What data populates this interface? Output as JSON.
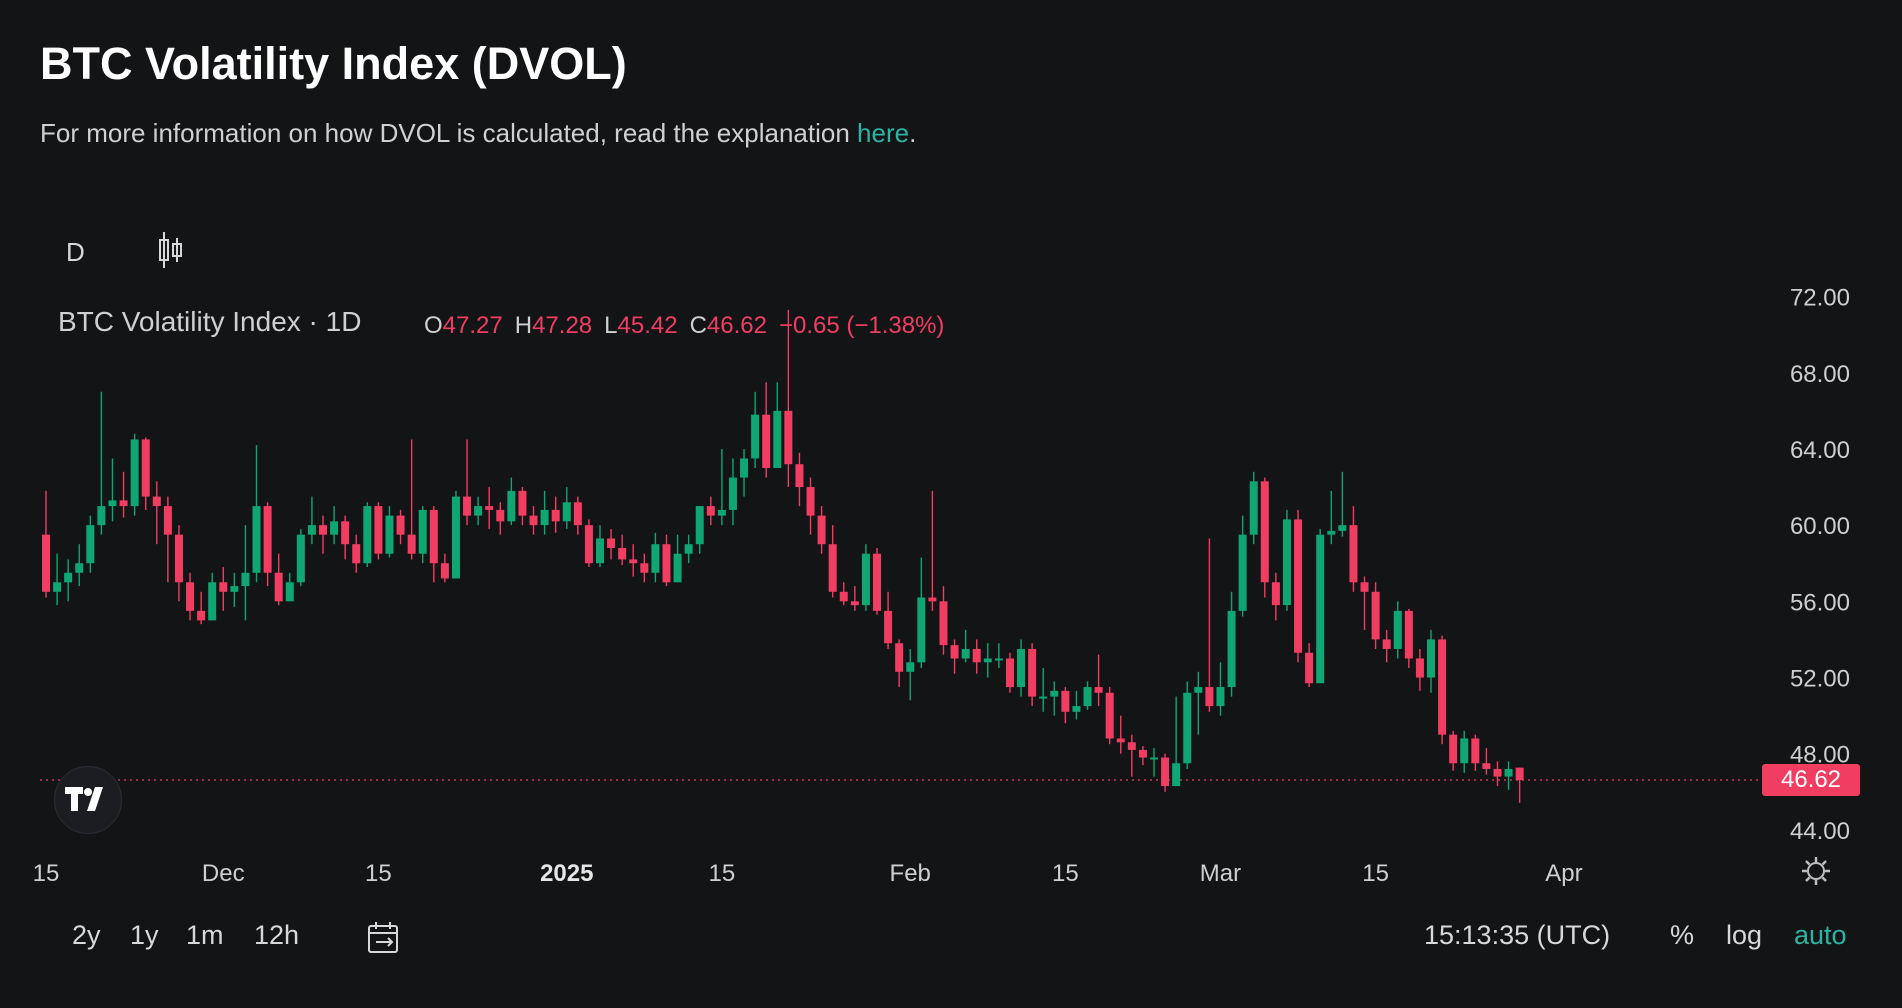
{
  "header": {
    "title": "BTC Volatility Index (DVOL)",
    "subtitle_prefix": "For more information on how DVOL is calculated, read the explanation ",
    "subtitle_link": "here",
    "subtitle_suffix": "."
  },
  "toolbar": {
    "interval": "D",
    "chart_type_icon": "candlestick-icon"
  },
  "legend": {
    "symbol": "BTC Volatility Index · 1D",
    "o_label": "O",
    "o_value": "47.27",
    "h_label": "H",
    "h_value": "47.28",
    "l_label": "L",
    "l_value": "45.42",
    "c_label": "C",
    "c_value": "46.62",
    "change": "−0.65 (−1.38%)"
  },
  "last_price": "46.62",
  "bottom": {
    "ranges": [
      "2y",
      "1y",
      "1m",
      "12h"
    ],
    "time": "15:13:35 (UTC)",
    "percent": "%",
    "log": "log",
    "auto": "auto"
  },
  "colors": {
    "up": "#0fa673",
    "down": "#f23d63",
    "accent": "#2bb3a3",
    "background": "#131416"
  },
  "chart_data": {
    "type": "candlestick",
    "title": "BTC Volatility Index · 1D",
    "ylim": [
      42.0,
      73.5
    ],
    "y_ticks": [
      "72.00",
      "68.00",
      "64.00",
      "60.00",
      "56.00",
      "52.00",
      "48.00",
      "44.00"
    ],
    "x_ticks": [
      "15",
      "Dec",
      "15",
      "2025",
      "15",
      "Feb",
      "15",
      "Mar",
      "15",
      "Apr"
    ],
    "x_tick_days": [
      0,
      16,
      30,
      47,
      61,
      78,
      92,
      106,
      120,
      137
    ],
    "first_date": "2024-11-15",
    "candles": [
      [
        59.5,
        56.5,
        61.8,
        56.2
      ],
      [
        56.5,
        57.0,
        58.5,
        55.8
      ],
      [
        57.0,
        57.5,
        58.2,
        56.0
      ],
      [
        57.5,
        58.0,
        59.0,
        56.8
      ],
      [
        58.0,
        60.0,
        60.5,
        57.5
      ],
      [
        60.0,
        61.0,
        67.0,
        59.5
      ],
      [
        61.0,
        61.3,
        63.5,
        60.2
      ],
      [
        61.3,
        61.0,
        62.8,
        60.4
      ],
      [
        61.0,
        64.5,
        64.8,
        60.5
      ],
      [
        64.5,
        61.5,
        64.6,
        60.8
      ],
      [
        61.5,
        61.0,
        62.3,
        59.0
      ],
      [
        61.0,
        59.5,
        61.5,
        57.0
      ],
      [
        59.5,
        57.0,
        60.0,
        56.0
      ],
      [
        57.0,
        55.5,
        57.5,
        55.0
      ],
      [
        55.5,
        55.0,
        56.5,
        54.8
      ],
      [
        55.0,
        57.0,
        57.5,
        55.0
      ],
      [
        57.0,
        56.5,
        57.8,
        55.5
      ],
      [
        56.5,
        56.8,
        57.5,
        55.7
      ],
      [
        56.8,
        57.5,
        60.0,
        55.0
      ],
      [
        57.5,
        61.0,
        64.2,
        57.0
      ],
      [
        61.0,
        57.5,
        61.2,
        56.8
      ],
      [
        57.5,
        56.0,
        58.5,
        55.8
      ],
      [
        56.0,
        57.0,
        57.5,
        56.5
      ],
      [
        57.0,
        59.5,
        59.8,
        56.8
      ],
      [
        59.5,
        60.0,
        61.5,
        59.0
      ],
      [
        60.0,
        59.5,
        60.5,
        58.5
      ],
      [
        59.5,
        60.2,
        61.0,
        59.0
      ],
      [
        60.2,
        59.0,
        60.5,
        58.2
      ],
      [
        59.0,
        58.0,
        59.5,
        57.5
      ],
      [
        58.0,
        61.0,
        61.2,
        57.8
      ],
      [
        61.0,
        58.5,
        61.2,
        58.2
      ],
      [
        58.5,
        60.5,
        61.0,
        58.3
      ],
      [
        60.5,
        59.5,
        60.8,
        59.0
      ],
      [
        59.5,
        58.5,
        64.5,
        58.2
      ],
      [
        58.5,
        60.8,
        61.0,
        58.0
      ],
      [
        60.8,
        58.0,
        61.0,
        57.0
      ],
      [
        58.0,
        57.2,
        58.5,
        57.0
      ],
      [
        57.2,
        61.5,
        61.8,
        57.5
      ],
      [
        61.5,
        60.5,
        64.5,
        60.0
      ],
      [
        60.5,
        61.0,
        61.5,
        60.0
      ],
      [
        61.0,
        60.8,
        62.0,
        59.8
      ],
      [
        60.8,
        60.2,
        61.2,
        59.5
      ],
      [
        60.2,
        61.8,
        62.5,
        60.0
      ],
      [
        61.8,
        60.5,
        62.0,
        60.0
      ],
      [
        60.5,
        60.0,
        61.0,
        59.5
      ],
      [
        60.0,
        60.8,
        61.8,
        59.5
      ],
      [
        60.8,
        60.2,
        61.5,
        59.6
      ],
      [
        60.2,
        61.2,
        62.0,
        59.8
      ],
      [
        61.2,
        60.0,
        61.5,
        59.5
      ],
      [
        60.0,
        58.0,
        60.3,
        57.8
      ],
      [
        58.0,
        59.3,
        60.0,
        57.8
      ],
      [
        59.3,
        58.8,
        59.8,
        58.2
      ],
      [
        58.8,
        58.2,
        59.5,
        57.9
      ],
      [
        58.2,
        58.0,
        59.0,
        57.3
      ],
      [
        58.0,
        57.5,
        58.5,
        57.0
      ],
      [
        57.5,
        59.0,
        59.6,
        57.0
      ],
      [
        59.0,
        57.0,
        59.5,
        56.8
      ],
      [
        57.0,
        58.5,
        59.5,
        57.0
      ],
      [
        58.5,
        59.0,
        59.5,
        58.0
      ],
      [
        59.0,
        61.0,
        61.0,
        58.5
      ],
      [
        61.0,
        60.5,
        61.5,
        60.0
      ],
      [
        60.5,
        60.8,
        64.0,
        60.0
      ],
      [
        60.8,
        62.5,
        63.5,
        60.0
      ],
      [
        62.5,
        63.5,
        64.0,
        61.5
      ],
      [
        63.5,
        65.8,
        67.0,
        63.0
      ],
      [
        65.8,
        63.0,
        67.5,
        62.5
      ],
      [
        63.0,
        66.0,
        67.5,
        63.0
      ],
      [
        66.0,
        63.2,
        71.3,
        62.0
      ],
      [
        63.2,
        62.0,
        63.8,
        61.0
      ],
      [
        62.0,
        60.5,
        62.5,
        59.5
      ],
      [
        60.5,
        59.0,
        61.0,
        58.5
      ],
      [
        59.0,
        56.5,
        60.0,
        56.2
      ],
      [
        56.5,
        56.0,
        57.0,
        55.8
      ],
      [
        56.0,
        55.8,
        56.8,
        55.5
      ],
      [
        55.8,
        58.5,
        59.0,
        55.5
      ],
      [
        58.5,
        55.5,
        58.8,
        55.3
      ],
      [
        55.5,
        53.8,
        56.5,
        53.5
      ],
      [
        53.8,
        52.3,
        54.0,
        51.5
      ],
      [
        52.3,
        52.8,
        53.5,
        50.8
      ],
      [
        52.8,
        56.2,
        58.3,
        52.5
      ],
      [
        56.2,
        56.0,
        61.8,
        55.5
      ],
      [
        56.0,
        53.7,
        56.8,
        53.2
      ],
      [
        53.7,
        53.0,
        54.0,
        52.2
      ],
      [
        53.0,
        53.5,
        54.5,
        52.8
      ],
      [
        53.5,
        52.8,
        54.0,
        52.2
      ],
      [
        52.8,
        53.0,
        53.8,
        52.0
      ],
      [
        53.0,
        53.0,
        53.8,
        52.5
      ],
      [
        53.0,
        51.5,
        53.3,
        51.2
      ],
      [
        51.5,
        53.5,
        54.0,
        51.0
      ],
      [
        53.5,
        51.0,
        53.8,
        50.5
      ],
      [
        51.0,
        51.0,
        52.5,
        50.2
      ],
      [
        51.0,
        51.3,
        51.8,
        50.0
      ],
      [
        51.3,
        50.2,
        51.5,
        49.6
      ],
      [
        50.2,
        50.5,
        51.3,
        49.8
      ],
      [
        50.5,
        51.5,
        51.8,
        50.3
      ],
      [
        51.5,
        51.2,
        53.2,
        50.5
      ],
      [
        51.2,
        48.8,
        51.5,
        48.5
      ],
      [
        48.8,
        48.6,
        50.0,
        48.0
      ],
      [
        48.6,
        48.2,
        49.0,
        46.8
      ],
      [
        48.2,
        47.8,
        48.4,
        47.4
      ],
      [
        47.8,
        47.8,
        48.3,
        46.8
      ],
      [
        47.8,
        46.3,
        48.0,
        46.0
      ],
      [
        46.3,
        47.5,
        51.0,
        46.3
      ],
      [
        47.5,
        51.2,
        51.8,
        47.2
      ],
      [
        51.2,
        51.5,
        52.3,
        49.0
      ],
      [
        51.5,
        50.5,
        59.3,
        50.2
      ],
      [
        50.5,
        51.5,
        52.8,
        50.0
      ],
      [
        51.5,
        55.5,
        56.5,
        51.0
      ],
      [
        55.5,
        59.5,
        60.5,
        55.2
      ],
      [
        59.5,
        62.3,
        62.8,
        59.0
      ],
      [
        62.3,
        57.0,
        62.5,
        56.2
      ],
      [
        57.0,
        55.8,
        57.5,
        55.0
      ],
      [
        55.8,
        60.3,
        60.8,
        55.5
      ],
      [
        60.3,
        53.3,
        60.8,
        52.8
      ],
      [
        53.3,
        51.7,
        53.8,
        51.5
      ],
      [
        51.7,
        59.5,
        59.8,
        52.0
      ],
      [
        59.5,
        59.7,
        61.8,
        59.0
      ],
      [
        59.7,
        60.0,
        62.8,
        59.4
      ],
      [
        60.0,
        57.0,
        61.0,
        56.5
      ],
      [
        57.0,
        56.5,
        57.3,
        54.5
      ],
      [
        56.5,
        54.0,
        57.0,
        53.5
      ],
      [
        54.0,
        53.5,
        54.5,
        52.8
      ],
      [
        53.5,
        55.5,
        56.0,
        53.0
      ],
      [
        55.5,
        53.0,
        55.6,
        52.5
      ],
      [
        53.0,
        52.0,
        53.5,
        51.3
      ],
      [
        52.0,
        54.0,
        54.5,
        51.2
      ],
      [
        54.0,
        49.0,
        54.2,
        48.5
      ],
      [
        49.0,
        47.5,
        49.2,
        47.1
      ],
      [
        47.5,
        48.8,
        49.2,
        47.0
      ],
      [
        48.8,
        47.5,
        49.0,
        47.1
      ],
      [
        47.5,
        47.2,
        48.3,
        46.9
      ],
      [
        47.2,
        46.8,
        47.6,
        46.3
      ],
      [
        46.8,
        47.2,
        47.6,
        46.1
      ],
      [
        47.27,
        46.62,
        47.28,
        45.42
      ]
    ]
  }
}
